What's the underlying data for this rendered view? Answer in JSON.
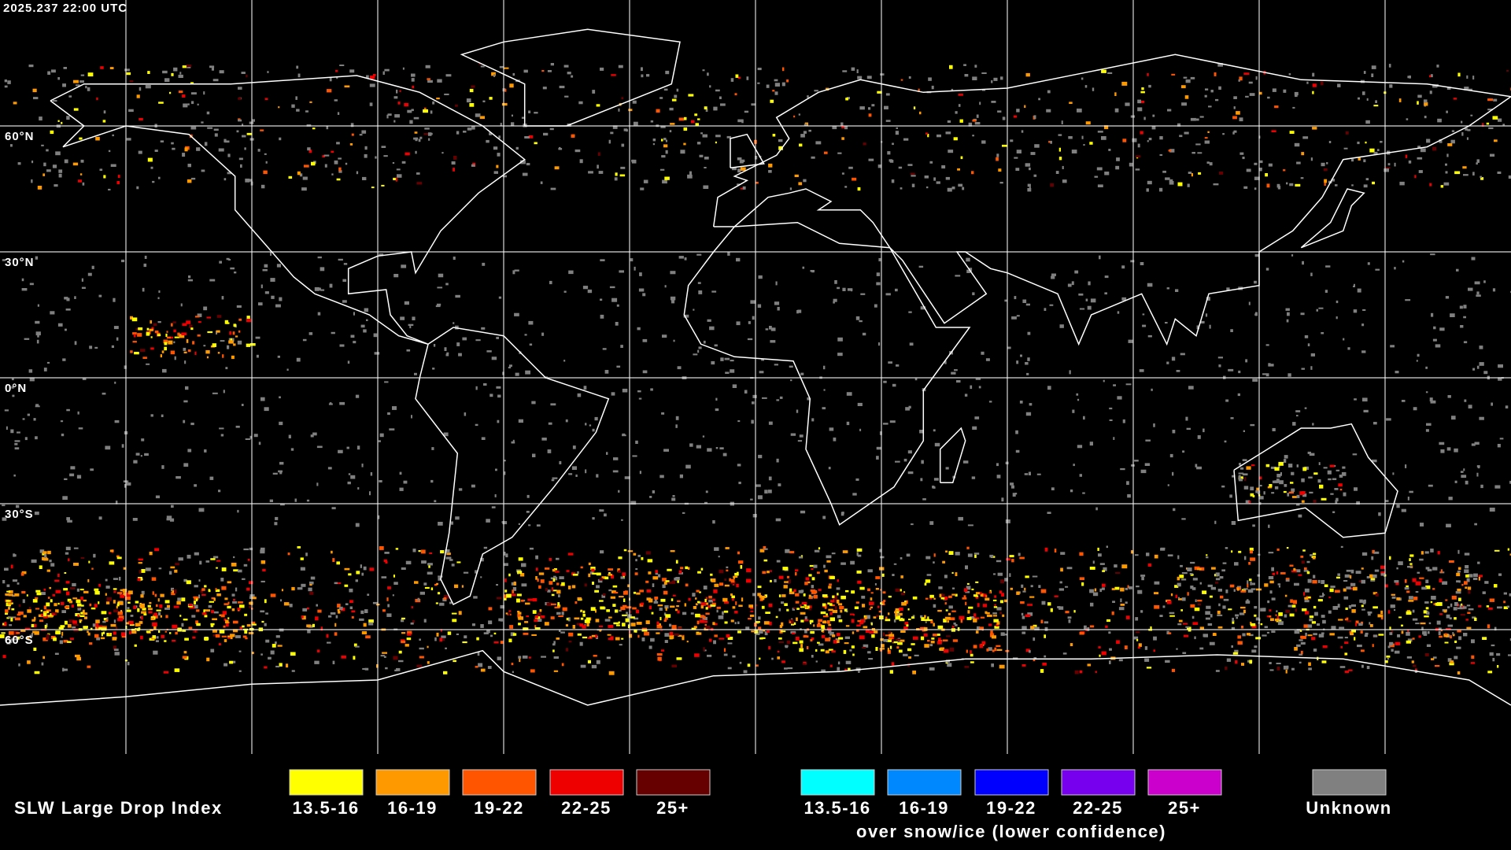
{
  "header": {
    "timestamp": "2025.237 22:00 UTC"
  },
  "map": {
    "lat_labels": [
      "60°N",
      "30°N",
      "0°N",
      "30°S",
      "60°S"
    ]
  },
  "legend": {
    "title": "SLW Large Drop Index",
    "liquid_items": [
      {
        "label": "13.5-16",
        "color": "#ffff00"
      },
      {
        "label": "16-19",
        "color": "#ff9900"
      },
      {
        "label": "19-22",
        "color": "#ff5500"
      },
      {
        "label": "22-25",
        "color": "#ee0000"
      },
      {
        "label": "25+",
        "color": "#660000"
      }
    ],
    "ice_items": [
      {
        "label": "13.5-16",
        "color": "#00ffff"
      },
      {
        "label": "16-19",
        "color": "#0088ff"
      },
      {
        "label": "19-22",
        "color": "#0000ff"
      },
      {
        "label": "22-25",
        "color": "#7700ee"
      },
      {
        "label": "25+",
        "color": "#cc00cc"
      }
    ],
    "ice_note": "over snow/ice (lower confidence)",
    "unknown": {
      "label": "Unknown",
      "color": "#808080"
    }
  }
}
